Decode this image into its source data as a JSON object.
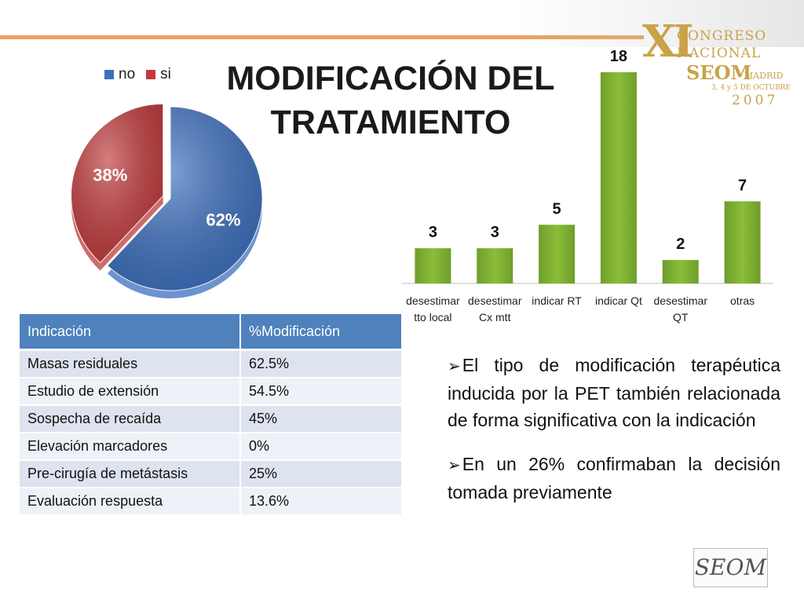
{
  "slide": {
    "title_line1": "MODIFICACIÓN DEL",
    "title_line2": "TRATAMIENTO"
  },
  "logo": {
    "xi": "XI",
    "line1": "CONGRESO",
    "line2": "NACIONAL",
    "line3": "SEOM",
    "line4": "MADRID",
    "line5": "3, 4 y 5 DE OCTUBRE",
    "line6": "2007"
  },
  "colors": {
    "pie_no": "#3c6fbf",
    "pie_si": "#c0393b",
    "bar": "#8bbd3a",
    "table_header": "#4f81bd",
    "rule": "#e8a25c"
  },
  "chart_data": [
    {
      "type": "pie",
      "legend": [
        "no",
        "si"
      ],
      "legend_position": "top",
      "slices": [
        {
          "name": "no",
          "value": 62,
          "label": "62%",
          "color": "#3c6fbf"
        },
        {
          "name": "si",
          "value": 38,
          "label": "38%",
          "color": "#c0393b"
        }
      ]
    },
    {
      "type": "bar",
      "categories": [
        [
          "desestimar",
          "tto local"
        ],
        [
          "desestimar",
          "Cx mtt"
        ],
        [
          "indicar RT"
        ],
        [
          "indicar Qt"
        ],
        [
          "desestimar",
          "QT"
        ],
        [
          "otras"
        ]
      ],
      "values": [
        3,
        3,
        5,
        18,
        2,
        7
      ],
      "ylim": [
        0,
        18
      ],
      "grid": false,
      "data_labels": true
    }
  ],
  "table": {
    "headers": [
      "Indicación",
      "%Modificación"
    ],
    "rows": [
      [
        "Masas residuales",
        "62.5%"
      ],
      [
        "Estudio de extensión",
        "54.5%"
      ],
      [
        "Sospecha de recaída",
        "45%"
      ],
      [
        "Elevación marcadores",
        "0%"
      ],
      [
        "Pre-cirugía de metástasis",
        "25%"
      ],
      [
        "Evaluación respuesta",
        "13.6%"
      ]
    ]
  },
  "bullets": [
    "El tipo de modificación terapéutica inducida por la PET también relacionada de forma significativa con la indicación",
    "En un 26% confirmaban la decisión tomada previamente"
  ],
  "bullet_marker": "➢",
  "footer_logo_text": "SEOM"
}
